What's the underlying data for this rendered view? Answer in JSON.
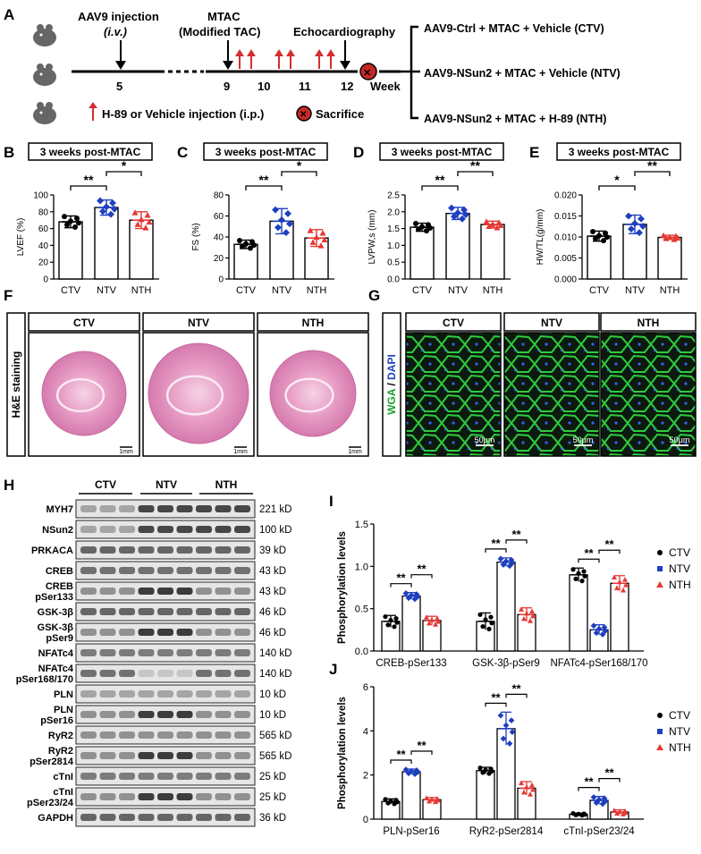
{
  "panels": {
    "A": "A",
    "B": "B",
    "C": "C",
    "D": "D",
    "E": "E",
    "F": "F",
    "G": "G",
    "H": "H",
    "I": "I",
    "J": "J"
  },
  "timeline": {
    "aav9": "AAV9 injection",
    "iv": "(i.v.)",
    "mtac": "MTAC",
    "mtac_sub": "(Modified TAC)",
    "echo": "Echocardiography",
    "weeks": [
      "5",
      "9",
      "10",
      "11",
      "12"
    ],
    "week_label": "Week",
    "h89_legend": "H-89 or Vehicle injection (i.p.)",
    "sacrifice_legend": "Sacrifice",
    "groups": [
      "AAV9-Ctrl + MTAC + Vehicle (CTV)",
      "AAV9-NSun2 + MTAC + Vehicle (NTV)",
      "AAV9-NSun2 + MTAC + H-89 (NTH)"
    ]
  },
  "colors": {
    "ctv": "#000000",
    "ntv": "#1f3fbf",
    "nth": "#e53935"
  },
  "groups_short": [
    "CTV",
    "NTV",
    "NTH"
  ],
  "sig": {
    "double": "**",
    "single": "*"
  },
  "bar_charts": [
    {
      "box": "3 weeks post-MTAC",
      "ylabel": "LVEF (%)",
      "ylim": [
        0,
        100
      ],
      "ticks": [
        "0",
        "20",
        "40",
        "60",
        "80",
        "100"
      ],
      "tickvals": [
        0,
        20,
        40,
        60,
        80,
        100
      ],
      "values": [
        68,
        85,
        70
      ],
      "errors": [
        7,
        9,
        10
      ],
      "sig": [
        "**",
        "*"
      ]
    },
    {
      "box": "3 weeks post-MTAC",
      "ylabel": "FS (%)",
      "ylim": [
        0,
        80
      ],
      "ticks": [
        "0",
        "20",
        "40",
        "60",
        "80"
      ],
      "tickvals": [
        0,
        20,
        40,
        60,
        80
      ],
      "values": [
        33,
        55,
        39
      ],
      "errors": [
        4,
        12,
        8
      ],
      "sig": [
        "**",
        "*"
      ]
    },
    {
      "box": "3 weeks post-MTAC",
      "ylabel": "LVPW,s (mm)",
      "ylim": [
        0,
        2.5
      ],
      "ticks": [
        "0.0",
        "0.5",
        "1.0",
        "1.5",
        "2.0",
        "2.5"
      ],
      "tickvals": [
        0,
        0.5,
        1.0,
        1.5,
        2.0,
        2.5
      ],
      "values": [
        1.54,
        1.95,
        1.62
      ],
      "errors": [
        0.12,
        0.18,
        0.1
      ],
      "sig": [
        "**",
        "**"
      ]
    },
    {
      "box": "3 weeks post-MTAC",
      "ylabel": "HW/TL(g/mm)",
      "ylim": [
        0,
        0.02
      ],
      "ticks": [
        "0.000",
        "0.005",
        "0.010",
        "0.015",
        "0.020"
      ],
      "tickvals": [
        0,
        0.005,
        0.01,
        0.015,
        0.02
      ],
      "values": [
        0.0102,
        0.013,
        0.0099
      ],
      "errors": [
        0.0012,
        0.0022,
        0.0005
      ],
      "sig": [
        "*",
        "**"
      ]
    }
  ],
  "he": {
    "label": "H&E staining",
    "scale": "1mm",
    "groups": [
      "CTV",
      "NTV",
      "NTH"
    ]
  },
  "wga": {
    "label_wga": "WGA",
    "label_slash": " / ",
    "label_dapi": "DAPI",
    "scale": "50μm",
    "groups": [
      "CTV",
      "NTV",
      "NTH"
    ]
  },
  "blots": [
    {
      "name": "MYH7",
      "kd": "221 kD"
    },
    {
      "name": "NSun2",
      "kd": "100 kD"
    },
    {
      "name": "PRKACA",
      "kd": "39 kD"
    },
    {
      "name": "CREB",
      "kd": "43 kD"
    },
    {
      "name": "CREB",
      "name2": "pSer133",
      "kd": "43 kD"
    },
    {
      "name": "GSK-3β",
      "kd": "46 kD"
    },
    {
      "name": "GSK-3β",
      "name2": "pSer9",
      "kd": "46 kD"
    },
    {
      "name": "NFATc4",
      "kd": "140 kD"
    },
    {
      "name": "NFATc4",
      "name2": "pSer168/170",
      "kd": "140 kD"
    },
    {
      "name": "PLN",
      "kd": "10 kD"
    },
    {
      "name": "PLN",
      "name2": "pSer16",
      "kd": "10 kD"
    },
    {
      "name": "RyR2",
      "kd": "565 kD"
    },
    {
      "name": "RyR2",
      "name2": "pSer2814",
      "kd": "565 kD"
    },
    {
      "name": "cTnI",
      "kd": "25 kD"
    },
    {
      "name": "cTnI",
      "name2": "pSer23/24",
      "kd": "25 kD"
    },
    {
      "name": "GAPDH",
      "kd": "36 kD"
    }
  ],
  "chart_data": [
    {
      "type": "bar",
      "ylabel": "Phosphorylation levels",
      "ylim": [
        0,
        1.5
      ],
      "ticks": [
        "0.0",
        "0.5",
        "1.0",
        "1.5"
      ],
      "tickvals": [
        0,
        0.5,
        1.0,
        1.5
      ],
      "categories": [
        "CREB-pSer133",
        "GSK-3β-pSer9",
        "NFATc4-pSer168/170"
      ],
      "series": [
        {
          "name": "CTV",
          "values": [
            0.35,
            0.35,
            0.9
          ],
          "errors": [
            0.07,
            0.1,
            0.08
          ]
        },
        {
          "name": "NTV",
          "values": [
            0.65,
            1.05,
            0.25
          ],
          "errors": [
            0.04,
            0.05,
            0.06
          ]
        },
        {
          "name": "NTH",
          "values": [
            0.36,
            0.43,
            0.8
          ],
          "errors": [
            0.05,
            0.08,
            0.09
          ]
        }
      ],
      "sig": [
        "**",
        "**"
      ],
      "legend": "right"
    },
    {
      "type": "bar",
      "ylabel": "Phosphorylation levels",
      "ylim": [
        0,
        6
      ],
      "ticks": [
        "0",
        "2",
        "4",
        "6"
      ],
      "tickvals": [
        0,
        2,
        4,
        6
      ],
      "categories": [
        "PLN-pSer16",
        "RyR2-pSer2814",
        "cTnI-pSer23/24"
      ],
      "series": [
        {
          "name": "CTV",
          "values": [
            0.8,
            2.2,
            0.22
          ],
          "errors": [
            0.12,
            0.15,
            0.05
          ]
        },
        {
          "name": "NTV",
          "values": [
            2.15,
            4.1,
            0.85
          ],
          "errors": [
            0.12,
            0.75,
            0.18
          ]
        },
        {
          "name": "NTH",
          "values": [
            0.88,
            1.4,
            0.32
          ],
          "errors": [
            0.1,
            0.3,
            0.1
          ]
        }
      ],
      "sig": [
        "**",
        "**"
      ],
      "legend": "right"
    }
  ]
}
